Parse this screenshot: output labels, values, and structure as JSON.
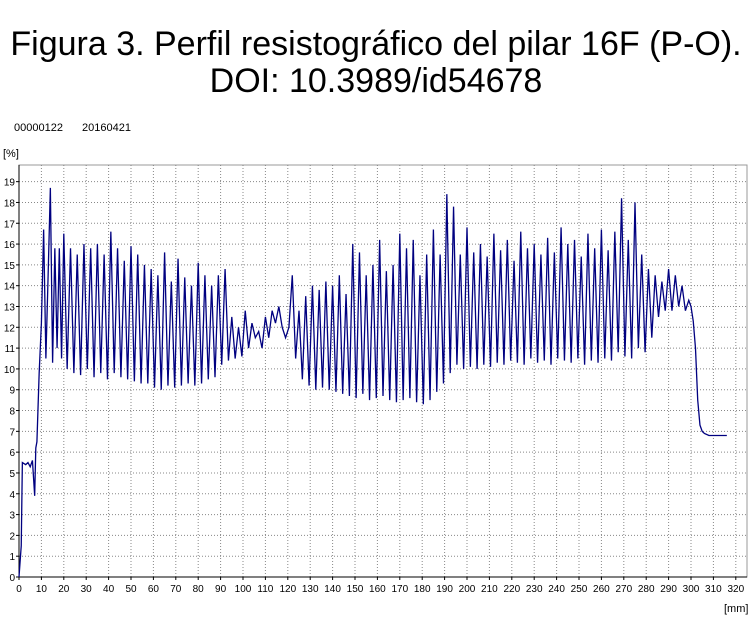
{
  "chart_data": {
    "type": "line",
    "title": "Figura 3. Perfil resistográfico del pilar 16F (P-O).",
    "subtitle": "DOI: 10.3989/id54678",
    "annotations": [
      "00000122",
      "20160421"
    ],
    "y_label": "[%]",
    "x_label": "[mm]",
    "xlim": [
      0,
      325
    ],
    "ylim": [
      0,
      19.8
    ],
    "xticks": [
      0,
      10,
      20,
      30,
      40,
      50,
      60,
      70,
      80,
      90,
      100,
      110,
      120,
      130,
      140,
      150,
      160,
      170,
      180,
      190,
      200,
      210,
      220,
      230,
      240,
      250,
      260,
      270,
      280,
      290,
      300,
      310,
      320
    ],
    "yticks": [
      0,
      1,
      2,
      3,
      4,
      5,
      6,
      7,
      8,
      9,
      10,
      11,
      12,
      13,
      14,
      15,
      16,
      17,
      18,
      19
    ],
    "grid": true,
    "series": [
      {
        "name": null,
        "color": "#000080",
        "x": [
          0,
          1,
          1.5,
          3,
          4,
          5,
          6,
          7,
          7.5,
          8,
          9,
          10,
          11,
          12,
          13,
          14,
          15,
          16,
          17,
          18,
          19,
          20,
          21.5,
          23,
          24.5,
          26,
          27.5,
          29,
          30.5,
          32,
          33.5,
          35,
          36.5,
          38,
          39.5,
          41,
          42.5,
          44,
          45.5,
          47,
          48.5,
          50,
          51.5,
          53,
          54.5,
          56,
          57.5,
          59,
          60.5,
          62,
          63.5,
          65,
          66.5,
          68,
          69.5,
          71,
          72.5,
          74,
          75.5,
          77,
          78.5,
          80,
          81.5,
          83,
          84.5,
          86,
          87.5,
          89,
          90.5,
          92,
          93.5,
          95,
          96.5,
          98,
          99.5,
          101,
          102.5,
          104,
          105.5,
          107,
          108.5,
          110,
          111.5,
          113,
          114.5,
          116,
          117.5,
          119,
          120.5,
          122,
          123.5,
          125,
          126.5,
          128,
          129.5,
          131,
          132.5,
          134,
          135.5,
          137,
          138.5,
          140,
          141.5,
          143,
          144.5,
          146,
          147.5,
          149,
          150.5,
          152,
          153.5,
          155,
          156.5,
          158,
          159.5,
          161,
          162.5,
          164,
          165.5,
          167,
          168.5,
          170,
          171.5,
          173,
          174.5,
          176,
          177.5,
          179,
          180.5,
          182,
          183.5,
          185,
          186.5,
          188,
          189.5,
          191,
          192.5,
          194,
          195.5,
          197,
          198.5,
          200,
          201.5,
          203,
          204.5,
          206,
          207.5,
          209,
          210.5,
          212,
          213.5,
          215,
          216.5,
          218,
          219.5,
          221,
          222.5,
          224,
          225.5,
          227,
          228.5,
          230,
          231.5,
          233,
          234.5,
          236,
          237.5,
          239,
          240.5,
          242,
          243.5,
          245,
          246.5,
          248,
          249.5,
          251,
          252.5,
          254,
          255.5,
          257,
          258.5,
          260,
          261.5,
          263,
          264.5,
          266,
          267.5,
          269,
          270.5,
          272,
          273.5,
          275,
          276.5,
          278,
          279.5,
          281,
          282.5,
          284,
          285.5,
          287,
          288.5,
          290,
          291.5,
          293,
          294.5,
          296,
          297.5,
          299,
          300,
          301,
          302,
          303,
          304,
          305,
          306,
          308,
          310,
          312,
          314,
          316
        ],
        "values": [
          0,
          1.5,
          5.5,
          5.4,
          5.5,
          5.3,
          5.6,
          3.9,
          6.2,
          6.5,
          9.8,
          12.2,
          16.7,
          10.5,
          14.5,
          18.7,
          10.3,
          15.8,
          11,
          15.8,
          10.5,
          16.5,
          10,
          15.8,
          9.8,
          15.5,
          9.7,
          16,
          10,
          15.8,
          9.6,
          16,
          9.8,
          15.5,
          9.5,
          16.6,
          9.8,
          15.8,
          9.6,
          15.2,
          9.5,
          15.9,
          9.4,
          15.5,
          9.3,
          15,
          9.3,
          14.8,
          9.1,
          14.5,
          9,
          15.6,
          9.2,
          14.2,
          9.1,
          15.3,
          9.2,
          14.4,
          9.3,
          14,
          9.2,
          15.1,
          9.3,
          14.5,
          9.5,
          14,
          9.6,
          14.5,
          10.2,
          14.8,
          10.4,
          12.5,
          10.5,
          12,
          10.6,
          12.8,
          11,
          12.2,
          11.5,
          11.8,
          11,
          12.5,
          11.5,
          12.8,
          12.2,
          13,
          12,
          11.5,
          12,
          14.5,
          10.5,
          12.8,
          9.5,
          13.5,
          9.2,
          14,
          9,
          13.8,
          9.1,
          14.2,
          9,
          14,
          8.9,
          14.5,
          8.8,
          13.6,
          8.7,
          16,
          8.6,
          15.6,
          8.8,
          14.5,
          8.5,
          15,
          8.6,
          16.2,
          8.7,
          14.7,
          8.5,
          15,
          8.4,
          16.5,
          8.5,
          15.8,
          8.6,
          16.2,
          8.4,
          14.5,
          8.3,
          15.5,
          8.5,
          16.7,
          8.9,
          15.5,
          9.3,
          18.4,
          9.8,
          17.8,
          10.2,
          15.5,
          10,
          16.8,
          10.1,
          15.6,
          10,
          16,
          10.2,
          15.4,
          10.1,
          16.5,
          10.3,
          15.7,
          10.2,
          16.2,
          10.4,
          15.2,
          10.3,
          16.6,
          10.2,
          15.8,
          10.5,
          16,
          10.3,
          15.5,
          10.4,
          16.3,
          10.2,
          15.6,
          10.5,
          16.8,
          10.4,
          16,
          10.3,
          16.2,
          10.5,
          15.4,
          10.2,
          16.5,
          10.4,
          15.8,
          10.3,
          16.7,
          10.5,
          15.7,
          10.4,
          16.6,
          10.8,
          18.2,
          10.6,
          16.2,
          10.5,
          18,
          11,
          15.5,
          10.8,
          14.8,
          11.5,
          14.5,
          12.5,
          14.2,
          12.8,
          14.8,
          12.8,
          14.5,
          13,
          14,
          12.8,
          13.3,
          13,
          12.3,
          11,
          8.5,
          7.3,
          7,
          6.9,
          6.8,
          6.8,
          6.8,
          6.8,
          6.8
        ]
      }
    ]
  }
}
